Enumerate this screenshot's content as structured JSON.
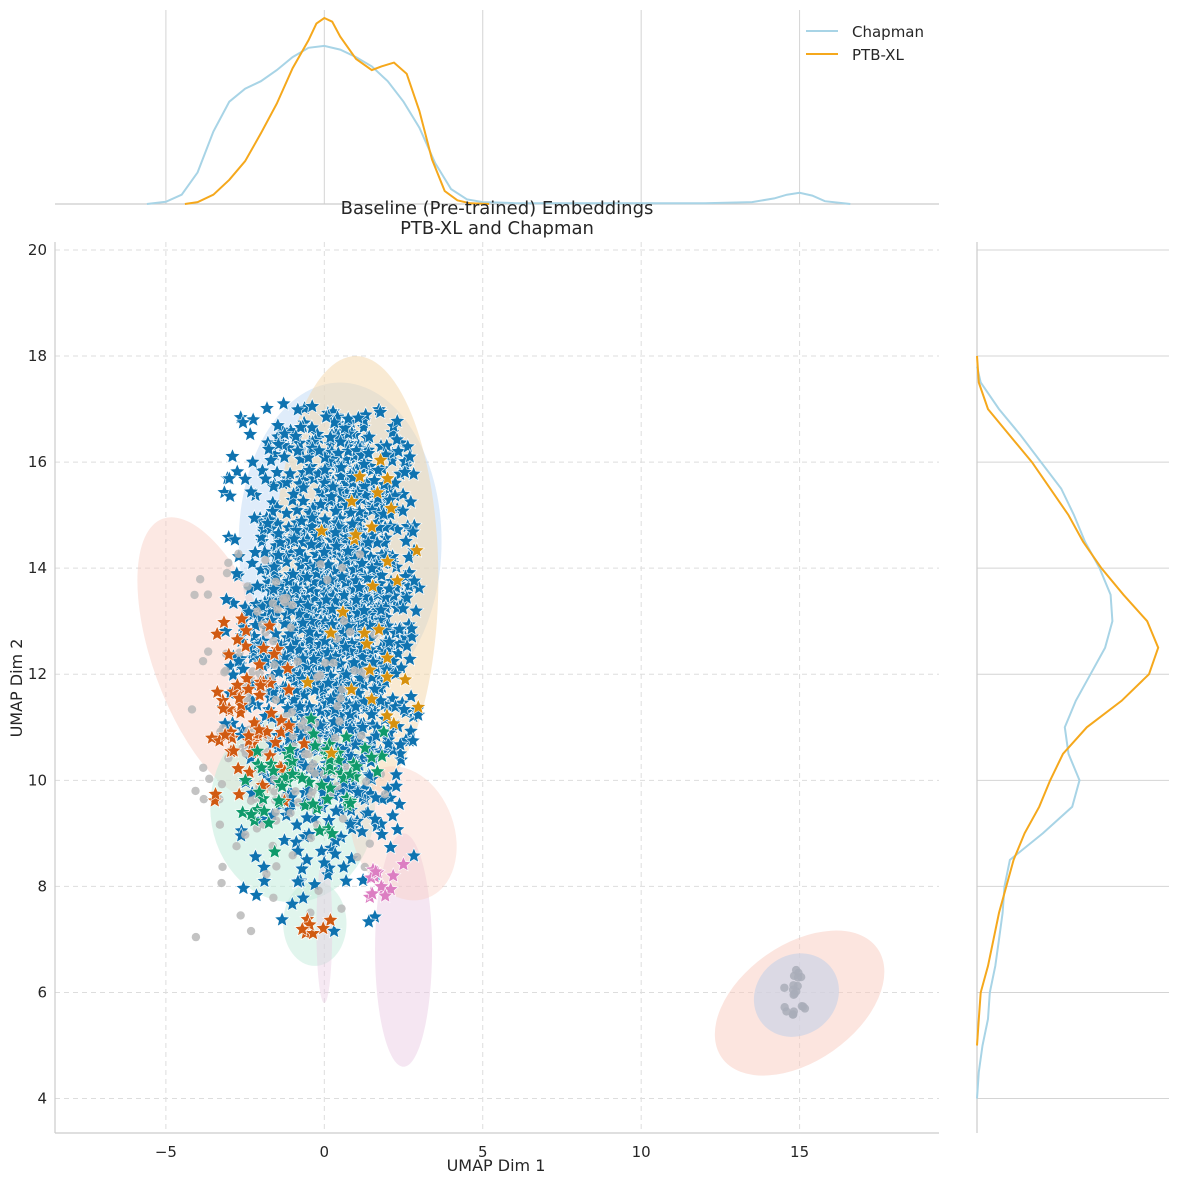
{
  "chart_data": {
    "type": "scatter",
    "title_line1": "Baseline (Pre-trained) Embeddings",
    "title_line2": "PTB-XL and Chapman",
    "xlabel": "UMAP Dim 1",
    "ylabel": "UMAP Dim 2",
    "xlim": [
      -8.5,
      19.4
    ],
    "ylim": [
      3.35,
      20.15
    ],
    "x_ticks": [
      -5,
      0,
      5,
      10,
      15
    ],
    "y_ticks": [
      4,
      6,
      8,
      10,
      12,
      14,
      16,
      18,
      20
    ],
    "grid": true,
    "legend_position": "top-right",
    "legend": [
      {
        "name": "Chapman",
        "color": "#a8d4e6"
      },
      {
        "name": "PTB-XL",
        "color": "#f5a81c"
      }
    ],
    "marginal_x": {
      "series": [
        {
          "name": "Chapman",
          "color": "#a8d4e6",
          "points": [
            [
              -5.6,
              0.0
            ],
            [
              -5.0,
              0.012
            ],
            [
              -4.5,
              0.05
            ],
            [
              -4.0,
              0.17
            ],
            [
              -3.5,
              0.39
            ],
            [
              -3.0,
              0.55
            ],
            [
              -2.5,
              0.62
            ],
            [
              -2.0,
              0.66
            ],
            [
              -1.5,
              0.72
            ],
            [
              -1.0,
              0.79
            ],
            [
              -0.5,
              0.84
            ],
            [
              0.0,
              0.85
            ],
            [
              0.5,
              0.83
            ],
            [
              1.0,
              0.79
            ],
            [
              1.5,
              0.74
            ],
            [
              2.0,
              0.66
            ],
            [
              2.5,
              0.55
            ],
            [
              3.0,
              0.41
            ],
            [
              3.5,
              0.22
            ],
            [
              4.0,
              0.08
            ],
            [
              4.5,
              0.025
            ],
            [
              5.0,
              0.01
            ],
            [
              6.0,
              0.005
            ],
            [
              8.0,
              0.004
            ],
            [
              10.0,
              0.004
            ],
            [
              12.0,
              0.004
            ],
            [
              13.5,
              0.01
            ],
            [
              14.2,
              0.03
            ],
            [
              14.6,
              0.05
            ],
            [
              15.0,
              0.06
            ],
            [
              15.4,
              0.045
            ],
            [
              15.8,
              0.015
            ],
            [
              16.6,
              0.0
            ]
          ]
        },
        {
          "name": "PTB-XL",
          "color": "#f5a81c",
          "points": [
            [
              -4.4,
              0.0
            ],
            [
              -4.0,
              0.01
            ],
            [
              -3.5,
              0.05
            ],
            [
              -3.0,
              0.13
            ],
            [
              -2.5,
              0.23
            ],
            [
              -2.0,
              0.38
            ],
            [
              -1.5,
              0.54
            ],
            [
              -1.0,
              0.73
            ],
            [
              -0.5,
              0.88
            ],
            [
              -0.25,
              0.97
            ],
            [
              0.0,
              1.0
            ],
            [
              0.25,
              0.98
            ],
            [
              0.5,
              0.9
            ],
            [
              1.0,
              0.78
            ],
            [
              1.5,
              0.72
            ],
            [
              1.8,
              0.74
            ],
            [
              2.2,
              0.76
            ],
            [
              2.6,
              0.7
            ],
            [
              3.0,
              0.5
            ],
            [
              3.4,
              0.24
            ],
            [
              3.8,
              0.07
            ],
            [
              4.2,
              0.02
            ],
            [
              4.6,
              0.004
            ],
            [
              5.2,
              0.0
            ]
          ]
        }
      ]
    },
    "marginal_y": {
      "series": [
        {
          "name": "Chapman",
          "color": "#a8d4e6",
          "points": [
            [
              4.0,
              0.0
            ],
            [
              4.5,
              0.01
            ],
            [
              5.0,
              0.03
            ],
            [
              5.5,
              0.06
            ],
            [
              6.0,
              0.07
            ],
            [
              6.5,
              0.1
            ],
            [
              7.0,
              0.12
            ],
            [
              7.5,
              0.14
            ],
            [
              8.0,
              0.15
            ],
            [
              8.5,
              0.18
            ],
            [
              9.0,
              0.36
            ],
            [
              9.5,
              0.52
            ],
            [
              10.0,
              0.56
            ],
            [
              10.5,
              0.5
            ],
            [
              11.0,
              0.48
            ],
            [
              11.5,
              0.54
            ],
            [
              12.0,
              0.62
            ],
            [
              12.5,
              0.7
            ],
            [
              13.0,
              0.74
            ],
            [
              13.5,
              0.73
            ],
            [
              14.0,
              0.67
            ],
            [
              14.5,
              0.59
            ],
            [
              15.0,
              0.53
            ],
            [
              15.5,
              0.46
            ],
            [
              16.0,
              0.35
            ],
            [
              16.5,
              0.24
            ],
            [
              17.0,
              0.12
            ],
            [
              17.5,
              0.02
            ],
            [
              17.8,
              0.0
            ]
          ]
        },
        {
          "name": "PTB-XL",
          "color": "#f5a81c",
          "points": [
            [
              5.0,
              0.0
            ],
            [
              5.5,
              0.01
            ],
            [
              6.0,
              0.02
            ],
            [
              6.5,
              0.06
            ],
            [
              7.0,
              0.09
            ],
            [
              7.5,
              0.12
            ],
            [
              8.0,
              0.16
            ],
            [
              8.5,
              0.2
            ],
            [
              9.0,
              0.26
            ],
            [
              9.5,
              0.34
            ],
            [
              10.0,
              0.4
            ],
            [
              10.5,
              0.47
            ],
            [
              11.0,
              0.6
            ],
            [
              11.5,
              0.79
            ],
            [
              12.0,
              0.94
            ],
            [
              12.5,
              0.99
            ],
            [
              13.0,
              0.93
            ],
            [
              13.5,
              0.8
            ],
            [
              14.0,
              0.68
            ],
            [
              14.5,
              0.58
            ],
            [
              15.0,
              0.5
            ],
            [
              15.5,
              0.4
            ],
            [
              16.0,
              0.3
            ],
            [
              16.5,
              0.18
            ],
            [
              17.0,
              0.06
            ],
            [
              17.5,
              0.01
            ],
            [
              18.0,
              0.0
            ]
          ]
        }
      ]
    },
    "density_blobs": [
      {
        "color": "#c5ddf6",
        "cx": 0.5,
        "cy": 14.5,
        "rx": 3.2,
        "ry": 3.0,
        "rot": 0,
        "opacity": 0.55
      },
      {
        "color": "#f4d6a8",
        "cx": 1.0,
        "cy": 13.8,
        "rx": 2.6,
        "ry": 4.2,
        "rot": 0,
        "opacity": 0.5
      },
      {
        "color": "#f9ccc0",
        "cx": -3.5,
        "cy": 12.3,
        "rx": 1.9,
        "ry": 2.8,
        "rot": 20,
        "opacity": 0.45
      },
      {
        "color": "#c3ecdc",
        "cx": -1.0,
        "cy": 9.5,
        "rx": 2.6,
        "ry": 1.8,
        "rot": 0,
        "opacity": 0.55
      },
      {
        "color": "#e9c8e2",
        "cx": 2.5,
        "cy": 6.8,
        "rx": 0.9,
        "ry": 2.2,
        "rot": 0,
        "opacity": 0.45
      },
      {
        "color": "#f9ccc0",
        "cx": 2.5,
        "cy": 9.0,
        "rx": 1.6,
        "ry": 1.3,
        "rot": 20,
        "opacity": 0.4
      },
      {
        "color": "#f9ccc0",
        "cx": 15.0,
        "cy": 5.8,
        "rx": 3.0,
        "ry": 1.1,
        "rot": 35,
        "opacity": 0.5
      },
      {
        "color": "#c9d2e6",
        "cx": 14.9,
        "cy": 5.95,
        "rx": 1.4,
        "ry": 0.75,
        "rot": 40,
        "opacity": 0.65
      },
      {
        "color": "#c3ecdc",
        "cx": -0.3,
        "cy": 7.3,
        "rx": 1.0,
        "ry": 0.8,
        "rot": 0,
        "opacity": 0.5
      },
      {
        "color": "#e9c8e2",
        "cx": 0.0,
        "cy": 7.2,
        "rx": 0.25,
        "ry": 1.4,
        "rot": 0,
        "opacity": 0.4
      }
    ],
    "scatter_series": [
      {
        "name": "group-blue",
        "color": "#0f73b0",
        "shape": "star",
        "n": 1500,
        "region": {
          "cx": 0.3,
          "cy": 13.2,
          "sx": 1.4,
          "sy": 2.2,
          "xmin": -3.2,
          "xmax": 3.0,
          "ymin": 7.0,
          "ymax": 17.1
        }
      },
      {
        "name": "group-grey",
        "color": "#b8b8b8",
        "shape": "circle",
        "n": 160,
        "region": {
          "cx": -1.5,
          "cy": 11.0,
          "sx": 1.6,
          "sy": 1.8,
          "xmin": -4.2,
          "xmax": 2.0,
          "ymin": 7.0,
          "ymax": 14.8
        }
      },
      {
        "name": "group-orange",
        "color": "#d05a12",
        "shape": "star",
        "n": 70,
        "region": {
          "cx": -2.4,
          "cy": 11.3,
          "sx": 0.8,
          "sy": 1.0,
          "xmin": -3.6,
          "xmax": 0.6,
          "ymin": 9.6,
          "ymax": 13.6
        }
      },
      {
        "name": "group-green",
        "color": "#0f9a6b",
        "shape": "star",
        "n": 70,
        "region": {
          "cx": -0.5,
          "cy": 9.9,
          "sx": 1.3,
          "sy": 0.7,
          "xmin": -2.6,
          "xmax": 2.4,
          "ymin": 8.6,
          "ymax": 11.4
        }
      },
      {
        "name": "group-pink",
        "color": "#dc7ec2",
        "shape": "star",
        "n": 14,
        "region": {
          "cx": 1.9,
          "cy": 8.1,
          "sx": 0.3,
          "sy": 0.3,
          "xmin": 1.2,
          "xmax": 2.6,
          "ymin": 7.6,
          "ymax": 8.7
        }
      },
      {
        "name": "group-amber",
        "color": "#d6910f",
        "shape": "star",
        "n": 30,
        "region": {
          "cx": 1.8,
          "cy": 13.5,
          "sx": 1.0,
          "sy": 2.0,
          "xmin": -1.0,
          "xmax": 3.0,
          "ymin": 9.0,
          "ymax": 16.7
        }
      },
      {
        "name": "group-orange-low",
        "color": "#d05a12",
        "shape": "star",
        "n": 8,
        "region": {
          "cx": -0.4,
          "cy": 7.3,
          "sx": 0.3,
          "sy": 0.2,
          "xmin": -0.8,
          "xmax": 0.8,
          "ymin": 7.0,
          "ymax": 7.6
        }
      },
      {
        "name": "group-grey-far",
        "color": "#a9adb9",
        "shape": "circle",
        "n": 20,
        "region": {
          "cx": 14.9,
          "cy": 6.0,
          "sx": 0.2,
          "sy": 0.25,
          "xmin": 14.5,
          "xmax": 15.2,
          "ymin": 5.5,
          "ymax": 6.5
        }
      }
    ]
  }
}
